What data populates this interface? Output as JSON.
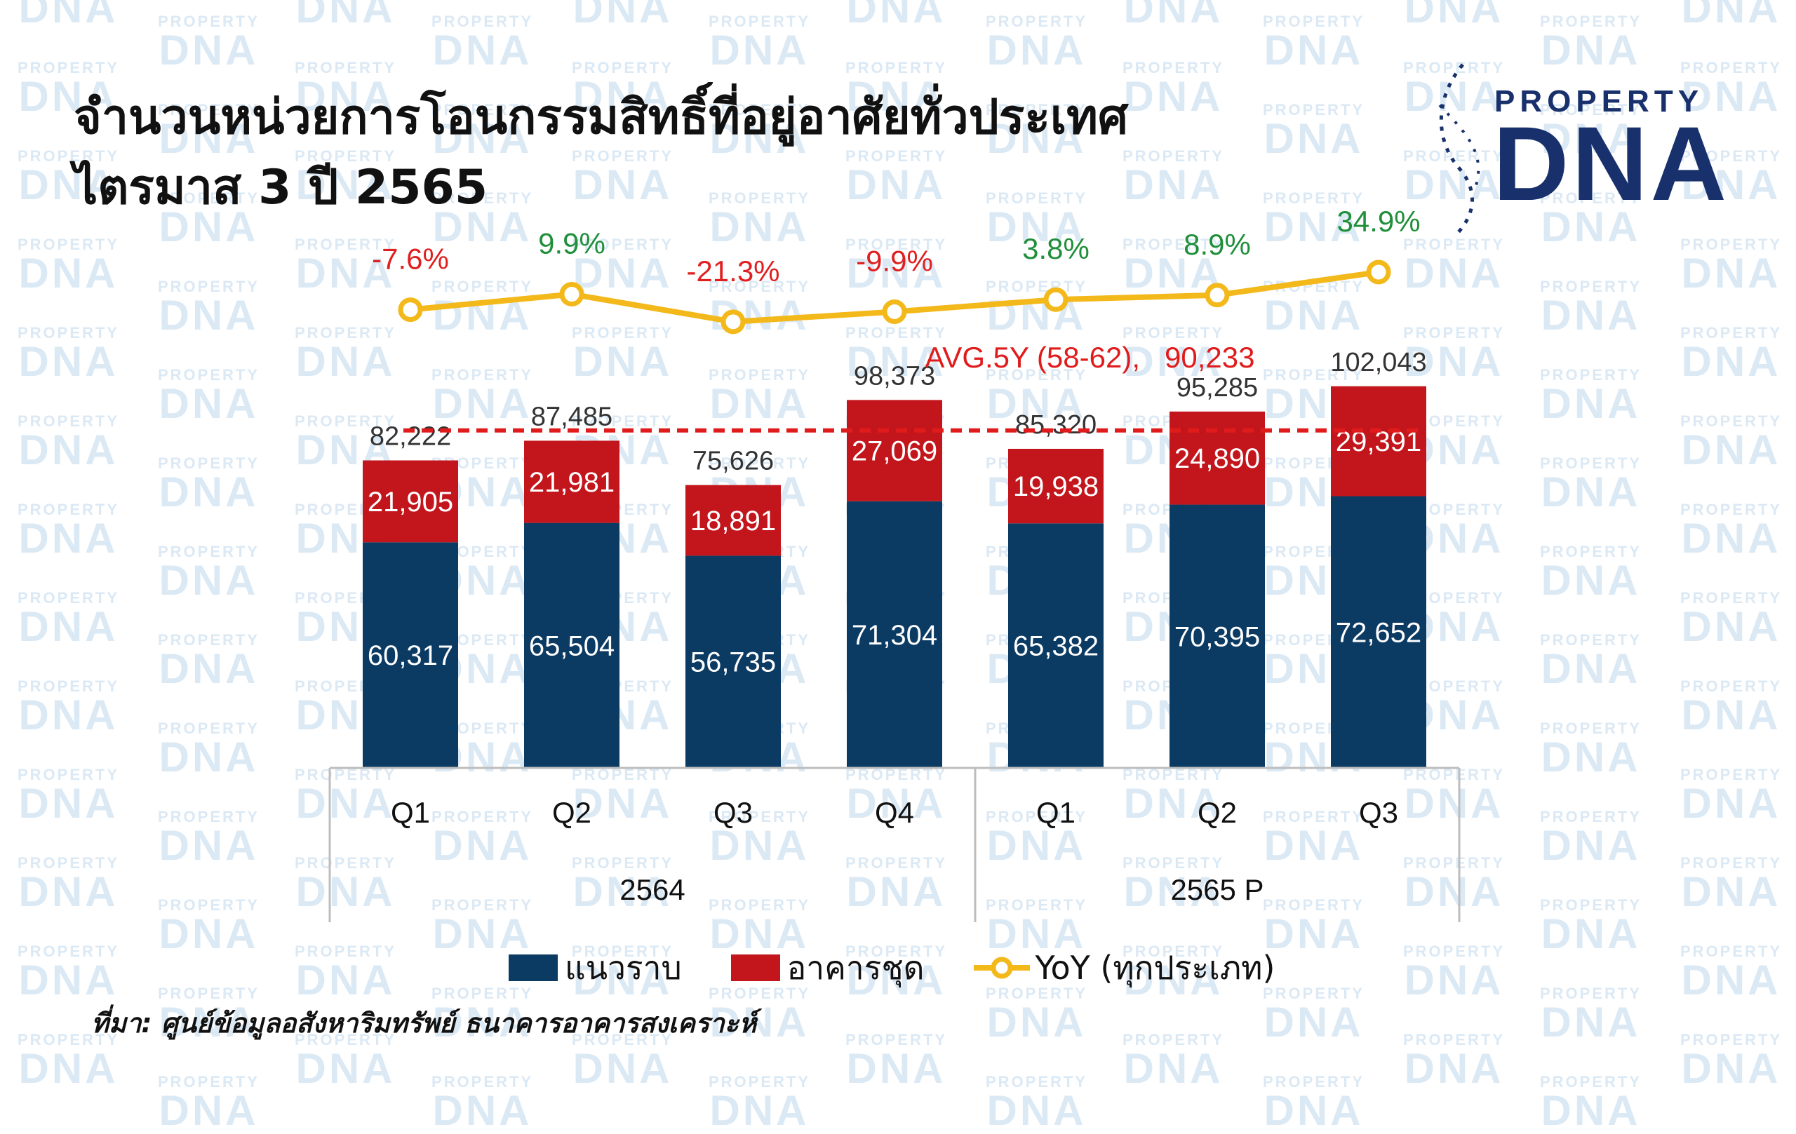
{
  "watermark": {
    "small": "PROPERTY",
    "big": "DNA"
  },
  "title": {
    "line1": "จำนวนหน่วยการโอนกรรมสิทธิ์ที่อยู่อาศัยทั่วประเทศ",
    "line2": "ไตรมาส 3 ปี 2565"
  },
  "logo": {
    "top": "PROPERTY",
    "main": "DNA"
  },
  "colors": {
    "horizontal": "#0b3a63",
    "condo": "#c3161c",
    "yoy": "#f3b81a",
    "avg_line": "#e01b1b",
    "positive": "#1f8f3a",
    "negative": "#e02020",
    "text": "#333333"
  },
  "chart_data": {
    "type": "bar",
    "stacked": true,
    "categories": [
      "Q1",
      "Q2",
      "Q3",
      "Q4",
      "Q1",
      "Q2",
      "Q3"
    ],
    "groups": [
      {
        "label": "2564",
        "count": 4
      },
      {
        "label": "2565 P",
        "count": 3
      }
    ],
    "series": [
      {
        "name": "แนวราบ",
        "values": [
          60317,
          65504,
          56735,
          71304,
          65382,
          70395,
          72652
        ]
      },
      {
        "name": "อาคารชุด",
        "values": [
          21905,
          21981,
          18891,
          27069,
          19938,
          24890,
          29391
        ]
      }
    ],
    "totals": [
      82222,
      87485,
      75626,
      98373,
      85320,
      95285,
      102043
    ],
    "value_labels": {
      "horizontal": [
        "60,317",
        "65,504",
        "56,735",
        "71,304",
        "65,382",
        "70,395",
        "72,652"
      ],
      "condo": [
        "21,905",
        "21,981",
        "18,891",
        "27,069",
        "19,938",
        "24,890",
        "29,391"
      ],
      "totals": [
        "82,222",
        "87,485",
        "75,626",
        "98,373",
        "85,320",
        "95,285",
        "102,043"
      ]
    },
    "yoy": {
      "name": "YoY (ทุกประเภท)",
      "values": [
        -7.6,
        9.9,
        -21.3,
        -9.9,
        3.8,
        8.9,
        34.9
      ],
      "labels": [
        "-7.6%",
        "9.9%",
        "-21.3%",
        "-9.9%",
        "3.8%",
        "8.9%",
        "34.9%"
      ]
    },
    "reference_line": {
      "label": "AVG.5Y (58-62),",
      "value_label": "90,233",
      "value": 90233
    },
    "ylim": [
      0,
      140000
    ],
    "grid": false,
    "legend_position": "bottom"
  },
  "legend": {
    "horizontal": "แนวราบ",
    "condo": "อาคารชุด",
    "yoy": "YoY (ทุกประเภท)"
  },
  "source": "ที่มา: ศูนย์ข้อมูลอสังหาริมทรัพย์ ธนาคารอาคารสงเคราะห์"
}
